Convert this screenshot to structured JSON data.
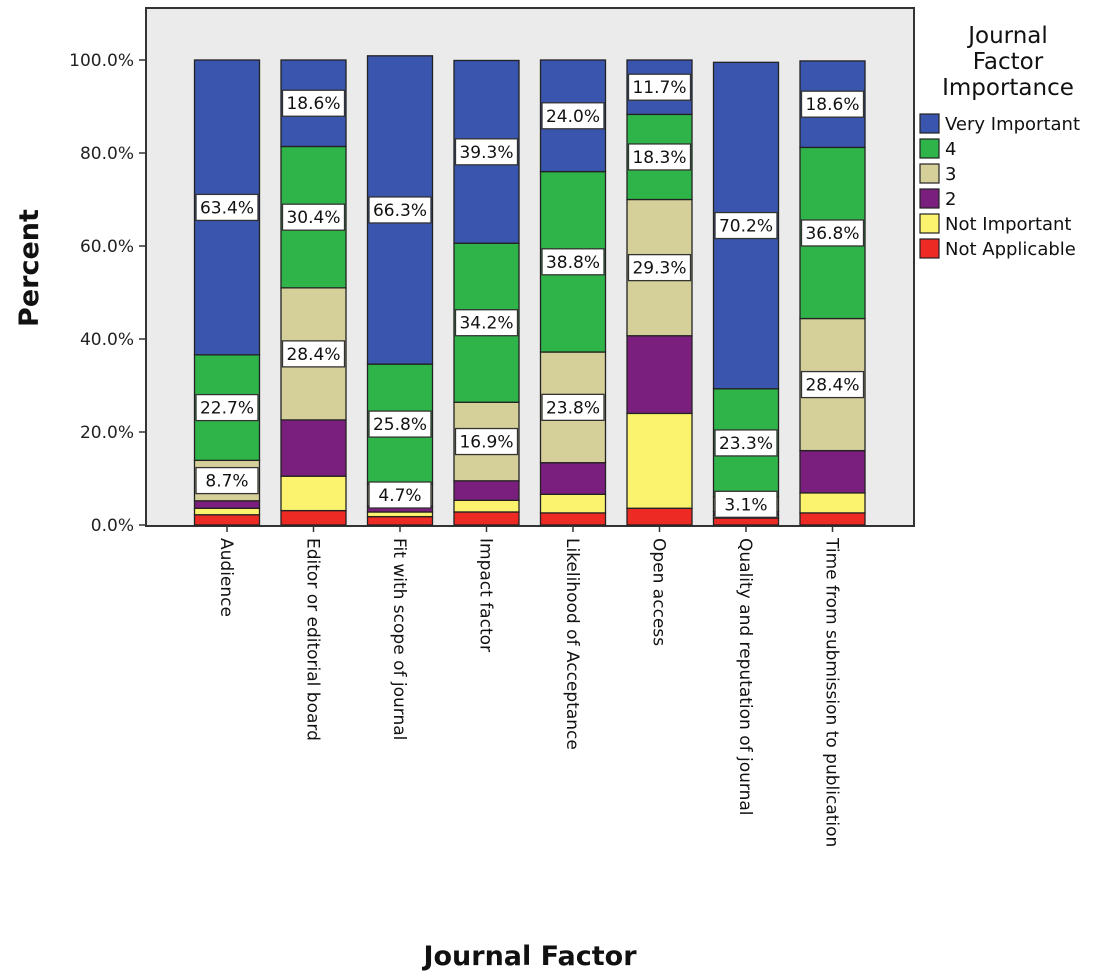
{
  "chart_data": {
    "type": "bar",
    "stacked": true,
    "percent_stacked": true,
    "xlabel": "Journal Factor",
    "ylabel": "Percent",
    "ylim": [
      0,
      100
    ],
    "yticks": [
      "0.0%",
      "20.0%",
      "40.0%",
      "60.0%",
      "80.0%",
      "100.0%"
    ],
    "grid": false,
    "legend_title_lines": [
      "Journal",
      "Factor",
      "Importance"
    ],
    "legend_position": "right",
    "categories": [
      "Audience",
      "Editor or editorial board",
      "Fit with scope of journal",
      "Impact factor",
      "Likelihood of Acceptance",
      "Open access",
      "Quality and reputation of journal",
      "Time from submission to publication"
    ],
    "series": [
      {
        "name": "Not Applicable",
        "color": "#ee2a24",
        "values": [
          2.2,
          3.1,
          1.8,
          2.8,
          2.6,
          3.6,
          1.5,
          2.6
        ]
      },
      {
        "name": "Not Important",
        "color": "#fbf36d",
        "values": [
          1.4,
          7.4,
          1.0,
          2.5,
          4.0,
          20.4,
          0.6,
          4.3
        ]
      },
      {
        "name": "2",
        "color": "#7b1f7f",
        "values": [
          1.6,
          12.1,
          1.3,
          4.2,
          6.8,
          16.7,
          0.8,
          9.1
        ]
      },
      {
        "name": "3",
        "color": "#d5d099",
        "values": [
          8.7,
          28.4,
          4.7,
          16.9,
          23.8,
          29.3,
          3.1,
          28.4
        ]
      },
      {
        "name": "4",
        "color": "#2fb44a",
        "values": [
          22.7,
          30.4,
          25.8,
          34.2,
          38.8,
          18.3,
          23.3,
          36.8
        ]
      },
      {
        "name": "Very Important",
        "color": "#3a55ad",
        "values": [
          63.4,
          18.6,
          66.3,
          39.3,
          24.0,
          11.7,
          70.2,
          18.6
        ]
      }
    ],
    "data_labels": [
      [
        "",
        "",
        "",
        "8.7%",
        "22.7%",
        "63.4%"
      ],
      [
        "",
        "",
        "",
        "28.4%",
        "30.4%",
        "18.6%"
      ],
      [
        "",
        "",
        "",
        "4.7%",
        "25.8%",
        "66.3%"
      ],
      [
        "",
        "",
        "",
        "16.9%",
        "34.2%",
        "39.3%"
      ],
      [
        "",
        "",
        "",
        "23.8%",
        "38.8%",
        "24.0%"
      ],
      [
        "",
        "",
        "",
        "29.3%",
        "18.3%",
        "11.7%"
      ],
      [
        "",
        "",
        "",
        "3.1%",
        "23.3%",
        "70.2%"
      ],
      [
        "",
        "",
        "",
        "28.4%",
        "36.8%",
        "18.6%"
      ]
    ],
    "legend_order": [
      "Very Important",
      "4",
      "3",
      "2",
      "Not Important",
      "Not Applicable"
    ]
  }
}
